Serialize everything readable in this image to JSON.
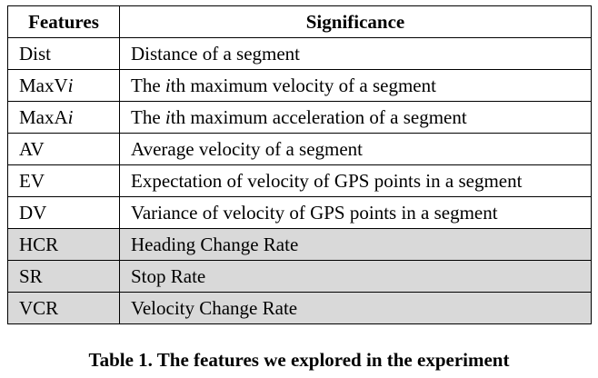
{
  "table": {
    "headers": [
      "Features",
      "Significance"
    ],
    "rows": [
      {
        "feature": "Dist",
        "feature_pre": "Dist",
        "feature_italic": "",
        "sig_pre": "Distance of a segment",
        "sig_italic": "",
        "sig_post": "",
        "shaded": false
      },
      {
        "feature": "MaxVi",
        "feature_pre": "MaxV",
        "feature_italic": "i",
        "sig_pre": "The ",
        "sig_italic": "i",
        "sig_post": "th maximum velocity of a segment",
        "shaded": false
      },
      {
        "feature": "MaxAi",
        "feature_pre": "MaxA",
        "feature_italic": "i",
        "sig_pre": "The ",
        "sig_italic": "i",
        "sig_post": "th maximum acceleration of a segment",
        "shaded": false
      },
      {
        "feature": "AV",
        "feature_pre": "AV",
        "feature_italic": "",
        "sig_pre": "Average velocity of a segment",
        "sig_italic": "",
        "sig_post": "",
        "shaded": false
      },
      {
        "feature": "EV",
        "feature_pre": "EV",
        "feature_italic": "",
        "sig_pre": "Expectation of velocity of GPS points in a segment",
        "sig_italic": "",
        "sig_post": "",
        "shaded": false
      },
      {
        "feature": "DV",
        "feature_pre": "DV",
        "feature_italic": "",
        "sig_pre": "Variance of velocity of GPS points in a segment",
        "sig_italic": "",
        "sig_post": "",
        "shaded": false
      },
      {
        "feature": "HCR",
        "feature_pre": "HCR",
        "feature_italic": "",
        "sig_pre": "Heading Change Rate",
        "sig_italic": "",
        "sig_post": "",
        "shaded": true
      },
      {
        "feature": "SR",
        "feature_pre": "SR",
        "feature_italic": "",
        "sig_pre": "Stop Rate",
        "sig_italic": "",
        "sig_post": "",
        "shaded": true
      },
      {
        "feature": "VCR",
        "feature_pre": "VCR",
        "feature_italic": "",
        "sig_pre": "Velocity Change Rate",
        "sig_italic": "",
        "sig_post": "",
        "shaded": true
      }
    ]
  },
  "caption": "Table 1. The features we explored in the experiment",
  "colors": {
    "shaded_row": "#d9d9d9",
    "border": "#000000"
  }
}
